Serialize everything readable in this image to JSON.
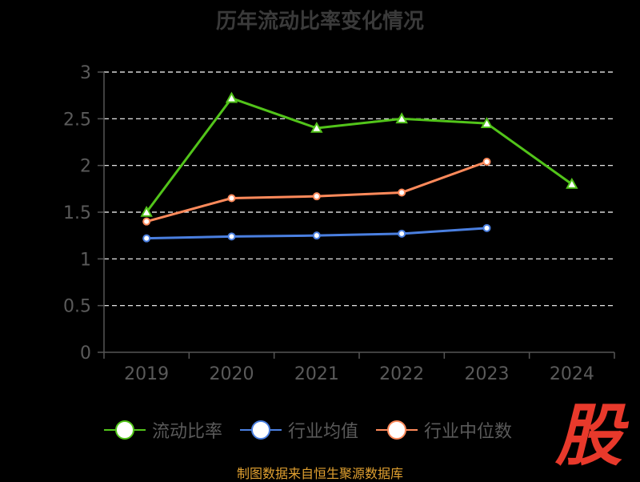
{
  "chart_data": {
    "type": "line",
    "title": "历年流动比率变化情况",
    "categories": [
      "2019",
      "2020",
      "2021",
      "2022",
      "2023",
      "2024"
    ],
    "ylim": [
      0,
      3
    ],
    "yticks": [
      "0",
      "0.5",
      "1",
      "1.5",
      "2",
      "2.5",
      "3"
    ],
    "grid": true,
    "legend_position": "bottom",
    "series": [
      {
        "name": "流动比率",
        "color": "#52c41a",
        "marker": "triangle",
        "values": [
          1.5,
          2.72,
          2.4,
          2.5,
          2.45,
          1.8
        ]
      },
      {
        "name": "行业均值",
        "color": "#4a7fe0",
        "marker": "circle",
        "values": [
          1.22,
          1.24,
          1.25,
          1.27,
          1.33,
          null
        ]
      },
      {
        "name": "行业中位数",
        "color": "#ff8a5b",
        "marker": "circle",
        "values": [
          1.4,
          1.65,
          1.67,
          1.71,
          2.04,
          null
        ]
      }
    ]
  },
  "logo_text": "股",
  "source": "制图数据来自恒生聚源数据库"
}
